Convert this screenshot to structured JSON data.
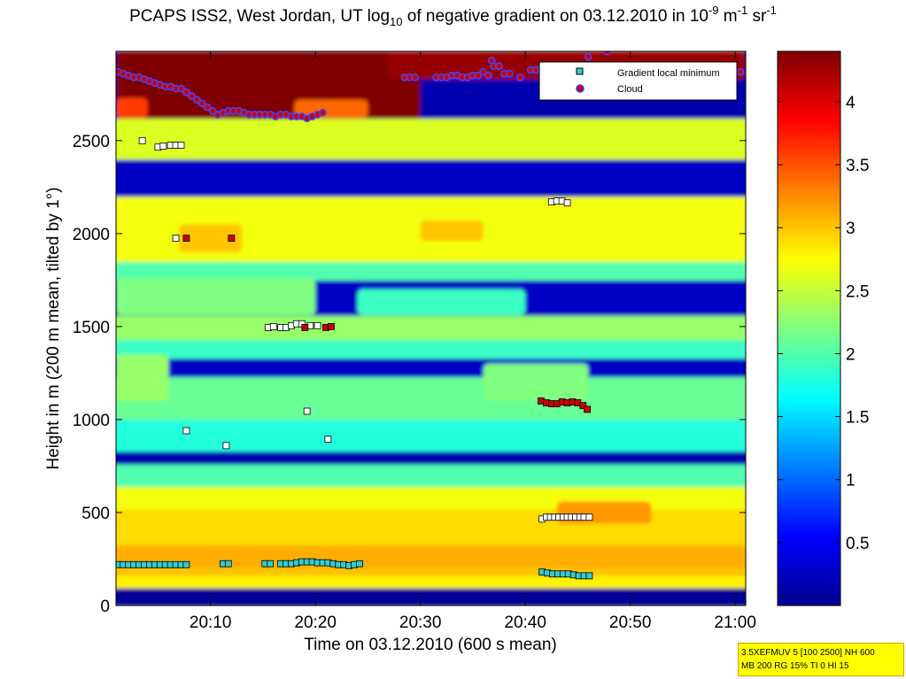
{
  "title": {
    "prefix": "PCAPS ISS2, West Jordan, UT log",
    "log_base": "10",
    "middle": " of negative gradient on 03.12.2010 in 10",
    "exp1": "-9",
    "unit1": " m",
    "exp2": "-1",
    "unit2": " sr",
    "exp3": "-1"
  },
  "info_box": {
    "line1": "3.5XEFMUV 5 [100 2500] NH 600",
    "line2": "MB 200 RG 15% TI 0 HI 15",
    "background": "#ffff00"
  },
  "chart_data": {
    "type": "heatmap",
    "xlabel": "Time on 03.12.2010 (600 s mean)",
    "ylabel": "Height in m (200 m mean, tilted by 1°)",
    "xlim_minutes": [
      1201,
      1261
    ],
    "ylim": [
      0,
      2980
    ],
    "x_ticks": [
      {
        "minutes": 1210,
        "label": "20:10"
      },
      {
        "minutes": 1220,
        "label": "20:20"
      },
      {
        "minutes": 1230,
        "label": "20:30"
      },
      {
        "minutes": 1240,
        "label": "20:40"
      },
      {
        "minutes": 1250,
        "label": "20:50"
      },
      {
        "minutes": 1260,
        "label": "21:00"
      }
    ],
    "y_ticks": [
      0,
      500,
      1000,
      1500,
      2000,
      2500
    ],
    "colorbar": {
      "min": 0,
      "max": 4.4,
      "ticks": [
        0.5,
        1,
        1.5,
        2,
        2.5,
        3,
        3.5,
        4
      ],
      "colormap": "jet"
    },
    "legend": {
      "location": "top-right",
      "entries": [
        {
          "label": "Gradient local minimum",
          "marker": "square",
          "color": "#33cccc"
        },
        {
          "label": "Cloud",
          "marker": "circle",
          "color": "#cc0000",
          "edge": "#3333ff"
        }
      ]
    },
    "layers": [
      {
        "bottom": 0,
        "top": 95,
        "value": 0.1
      },
      {
        "bottom": 95,
        "top": 160,
        "value": 2.8
      },
      {
        "bottom": 160,
        "top": 330,
        "value": 3.0
      },
      {
        "bottom": 330,
        "top": 520,
        "value": 2.9
      },
      {
        "bottom": 520,
        "top": 640,
        "value": 2.7
      },
      {
        "bottom": 640,
        "top": 760,
        "value": 2.0
      },
      {
        "bottom": 760,
        "top": 830,
        "value": 0.2
      },
      {
        "bottom": 830,
        "top": 1000,
        "value": 1.8
      },
      {
        "bottom": 1000,
        "top": 1230,
        "value": 2.1
      },
      {
        "bottom": 1230,
        "top": 1330,
        "value": 0.3
      },
      {
        "bottom": 1330,
        "top": 1430,
        "value": 1.9
      },
      {
        "bottom": 1430,
        "top": 1560,
        "value": 2.3
      },
      {
        "bottom": 1560,
        "top": 1750,
        "value": 0.3
      },
      {
        "bottom": 1750,
        "top": 1850,
        "value": 2.0
      },
      {
        "bottom": 1850,
        "top": 2200,
        "value": 2.7
      },
      {
        "bottom": 2200,
        "top": 2400,
        "value": 0.3
      },
      {
        "bottom": 2400,
        "top": 2620,
        "value": 2.6
      },
      {
        "bottom": 2620,
        "top": 2980,
        "value": 0.2
      }
    ],
    "patches": [
      {
        "x0": 1201,
        "x1": 1220,
        "y0": 1560,
        "y1": 1760,
        "value": 2.2
      },
      {
        "x0": 1224,
        "x1": 1240,
        "y0": 1560,
        "y1": 1700,
        "value": 1.9
      },
      {
        "x0": 1201,
        "x1": 1206,
        "y0": 1100,
        "y1": 1350,
        "value": 2.3
      },
      {
        "x0": 1236,
        "x1": 1246,
        "y0": 1100,
        "y1": 1300,
        "value": 2.2
      },
      {
        "x0": 1201,
        "x1": 1230,
        "y0": 2620,
        "y1": 2980,
        "value": 4.4
      },
      {
        "x0": 1218,
        "x1": 1225,
        "y0": 2620,
        "y1": 2720,
        "value": 3.4
      },
      {
        "x0": 1227,
        "x1": 1261,
        "y0": 2830,
        "y1": 2980,
        "value": 4.3
      },
      {
        "x0": 1207,
        "x1": 1213,
        "y0": 1900,
        "y1": 2050,
        "value": 3.0
      },
      {
        "x0": 1230,
        "x1": 1236,
        "y0": 1960,
        "y1": 2070,
        "value": 3.0
      },
      {
        "x0": 1201,
        "x1": 1204,
        "y0": 2620,
        "y1": 2730,
        "value": 3.6
      },
      {
        "x0": 1243,
        "x1": 1252,
        "y0": 440,
        "y1": 560,
        "value": 3.2
      },
      {
        "x0": 1201,
        "x1": 1261,
        "y0": 200,
        "y1": 320,
        "value": 3.1
      }
    ],
    "gradient_local_minimum": [
      {
        "x": [
          1201.2,
          1201.7,
          1202.2,
          1202.7,
          1203.2,
          1203.7,
          1204.2,
          1204.7,
          1205.2,
          1205.7,
          1206.2,
          1206.7,
          1207.2,
          1207.7,
          1211.2,
          1211.7,
          1215.2,
          1215.7,
          1216.7,
          1217.2,
          1217.7,
          1218.2,
          1218.7,
          1219.2,
          1219.7,
          1220.2,
          1220.7,
          1221.2,
          1221.7,
          1222.2,
          1222.7,
          1223.2,
          1223.7,
          1224.2
        ],
        "y": [
          220,
          220,
          220,
          220,
          220,
          220,
          220,
          220,
          220,
          220,
          220,
          220,
          220,
          220,
          225,
          225,
          225,
          225,
          225,
          225,
          225,
          230,
          235,
          235,
          235,
          230,
          230,
          230,
          225,
          220,
          220,
          215,
          220,
          225
        ]
      },
      {
        "x": [
          1241.6,
          1242.1,
          1242.6,
          1243.1,
          1243.6,
          1244.1,
          1244.6,
          1245.1,
          1245.6,
          1246.1
        ],
        "y": [
          180,
          175,
          170,
          170,
          170,
          170,
          165,
          160,
          160,
          160
        ]
      }
    ],
    "gradient_minimum_white": [
      {
        "x": 1241.6,
        "y": 465
      },
      {
        "x": 1242.0,
        "y": 475
      },
      {
        "x": 1242.4,
        "y": 475
      },
      {
        "x": 1242.8,
        "y": 475
      },
      {
        "x": 1243.2,
        "y": 475
      },
      {
        "x": 1243.6,
        "y": 475
      },
      {
        "x": 1244.0,
        "y": 475
      },
      {
        "x": 1244.4,
        "y": 475
      },
      {
        "x": 1244.8,
        "y": 475
      },
      {
        "x": 1245.2,
        "y": 475
      },
      {
        "x": 1245.6,
        "y": 475
      },
      {
        "x": 1246.1,
        "y": 475
      },
      {
        "x": 1207.7,
        "y": 940
      },
      {
        "x": 1211.5,
        "y": 860
      },
      {
        "x": 1219.2,
        "y": 1045
      },
      {
        "x": 1221.2,
        "y": 895
      },
      {
        "x": 1215.5,
        "y": 1495
      },
      {
        "x": 1216.0,
        "y": 1500
      },
      {
        "x": 1216.7,
        "y": 1495
      },
      {
        "x": 1217.2,
        "y": 1495
      },
      {
        "x": 1217.7,
        "y": 1505
      },
      {
        "x": 1218.2,
        "y": 1515
      },
      {
        "x": 1218.7,
        "y": 1515
      },
      {
        "x": 1219.5,
        "y": 1505
      },
      {
        "x": 1220.2,
        "y": 1505
      },
      {
        "x": 1206.7,
        "y": 1975
      },
      {
        "x": 1205.0,
        "y": 2465
      },
      {
        "x": 1205.5,
        "y": 2470
      },
      {
        "x": 1206.2,
        "y": 2475
      },
      {
        "x": 1206.7,
        "y": 2475
      },
      {
        "x": 1207.2,
        "y": 2475
      },
      {
        "x": 1203.5,
        "y": 2500
      },
      {
        "x": 1242.5,
        "y": 2170
      },
      {
        "x": 1243.0,
        "y": 2175
      },
      {
        "x": 1243.5,
        "y": 2175
      },
      {
        "x": 1244.0,
        "y": 2165
      }
    ],
    "gradient_minimum_red": [
      {
        "x": 1207.7,
        "y": 1975
      },
      {
        "x": 1212.0,
        "y": 1975
      },
      {
        "x": 1219.0,
        "y": 1495
      },
      {
        "x": 1221.0,
        "y": 1495
      },
      {
        "x": 1221.5,
        "y": 1500
      },
      {
        "x": 1241.5,
        "y": 1100
      },
      {
        "x": 1242.0,
        "y": 1090
      },
      {
        "x": 1242.5,
        "y": 1085
      },
      {
        "x": 1243.0,
        "y": 1085
      },
      {
        "x": 1243.5,
        "y": 1095
      },
      {
        "x": 1244.0,
        "y": 1090
      },
      {
        "x": 1244.5,
        "y": 1095
      },
      {
        "x": 1245.0,
        "y": 1090
      },
      {
        "x": 1245.5,
        "y": 1075
      },
      {
        "x": 1245.9,
        "y": 1055
      }
    ],
    "cloud": [
      {
        "x": [
          1201.2,
          1201.7,
          1202.2,
          1202.7,
          1203.2,
          1203.7,
          1204.2,
          1204.7,
          1205.2,
          1205.7,
          1206.2,
          1206.7,
          1207.2,
          1207.7,
          1208.2,
          1208.7,
          1209.2,
          1209.7,
          1210.2,
          1210.7,
          1211.2,
          1211.7,
          1212.2,
          1212.7,
          1213.2,
          1213.7,
          1214.2,
          1214.7,
          1215.2,
          1215.7,
          1216.2,
          1216.7,
          1217.2,
          1217.7,
          1218.2,
          1218.7,
          1219.2,
          1219.7,
          1220.2,
          1220.7
        ],
        "y": [
          2870,
          2860,
          2850,
          2840,
          2840,
          2830,
          2820,
          2810,
          2800,
          2790,
          2790,
          2780,
          2780,
          2760,
          2740,
          2720,
          2700,
          2680,
          2660,
          2640,
          2650,
          2660,
          2660,
          2660,
          2650,
          2640,
          2640,
          2640,
          2640,
          2640,
          2630,
          2640,
          2640,
          2630,
          2630,
          2630,
          2620,
          2630,
          2640,
          2650
        ]
      },
      {
        "x": [
          1228.5,
          1229.0,
          1229.5,
          1231.5,
          1232.0,
          1232.5,
          1233.0,
          1233.5,
          1234.0,
          1234.5,
          1235.0,
          1235.5,
          1236.0,
          1236.5,
          1237.0,
          1237.5,
          1238.0,
          1238.5,
          1239.5,
          1240.5,
          1241.0,
          1241.5,
          1242.0,
          1242.5,
          1243.0,
          1243.5,
          1244.0,
          1244.5,
          1245.0,
          1245.5,
          1246.0,
          1246.5,
          1247.0,
          1247.5,
          1248.0,
          1248.5,
          1249.0,
          1249.5,
          1250.0,
          1250.5,
          1251.0,
          1251.5,
          1252.0,
          1252.5,
          1253.0,
          1253.5,
          1254.0,
          1254.5,
          1255.0,
          1255.5,
          1256.0,
          1256.5,
          1257.0,
          1257.5,
          1258.0,
          1258.5,
          1259.0,
          1259.5,
          1260.0,
          1260.5
        ],
        "y": [
          2840,
          2840,
          2840,
          2840,
          2840,
          2840,
          2850,
          2850,
          2840,
          2840,
          2850,
          2850,
          2870,
          2850,
          2900,
          2900,
          2860,
          2860,
          2840,
          2880,
          2880,
          2880,
          2870,
          2880,
          2880,
          2880,
          2880,
          2880,
          2880,
          2880,
          2880,
          2880,
          2880,
          2890,
          2900,
          2900,
          2900,
          2900,
          2900,
          2900,
          2900,
          2900,
          2900,
          2880,
          2880,
          2880,
          2880,
          2890,
          2890,
          2880,
          2880,
          2880,
          2880,
          2880,
          2880,
          2880,
          2880,
          2880,
          2870,
          2870
        ]
      },
      {
        "x": [
          1246.0,
          1247.8,
          1236.8
        ],
        "y": [
          2950,
          2980,
          2930
        ]
      }
    ]
  }
}
